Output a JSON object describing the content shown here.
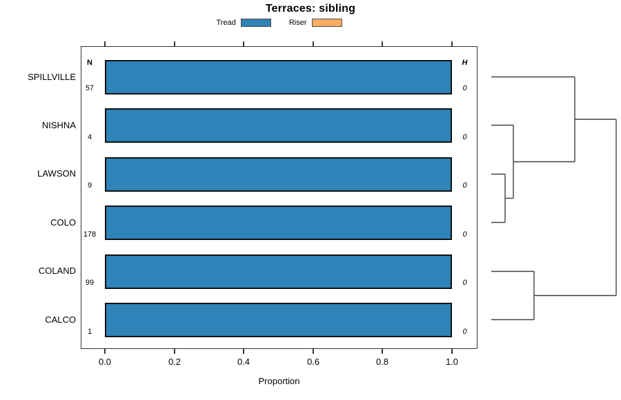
{
  "title": "Terraces: sibling",
  "legend": {
    "items": [
      {
        "label": "Tread",
        "color": "#2F83B8"
      },
      {
        "label": "Riser",
        "color": "#FCAC63"
      }
    ]
  },
  "chart_data": {
    "type": "bar",
    "orientation": "horizontal",
    "title": "Terraces: sibling",
    "categories": [
      "SPILLVILLE",
      "NISHNA",
      "LAWSON",
      "COLO",
      "COLAND",
      "CALCO"
    ],
    "series": [
      {
        "name": "Tread",
        "color": "#2F83B8",
        "values": [
          1.0,
          1.0,
          1.0,
          1.0,
          1.0,
          1.0
        ]
      },
      {
        "name": "Riser",
        "color": "#FCAC63",
        "values": [
          0,
          0,
          0,
          0,
          0,
          0
        ]
      }
    ],
    "n_column": {
      "header": "N",
      "values": [
        57,
        4,
        9,
        178,
        99,
        1
      ]
    },
    "h_column": {
      "header": "H",
      "values": [
        0,
        0,
        0,
        0,
        0,
        0
      ]
    },
    "xlabel": "Proportion",
    "x_ticks": [
      "0.0",
      "0.2",
      "0.4",
      "0.6",
      "0.8",
      "1.0"
    ],
    "xlim": [
      0,
      1
    ],
    "grid": false,
    "legend_position": "top-center",
    "bar_border_color": "#111111",
    "frame_color": "#333333"
  },
  "dendrogram": {
    "line_color": "#404040",
    "segments": [
      [
        712,
        111.5,
        833,
        111.5
      ],
      [
        833,
        111.5,
        833,
        234.5
      ],
      [
        712,
        181.5,
        744,
        181.5
      ],
      [
        744,
        181.5,
        744,
        287.5
      ],
      [
        712,
        252.5,
        732,
        252.5
      ],
      [
        712,
        322.5,
        732,
        322.5
      ],
      [
        732,
        252.5,
        732,
        322.5
      ],
      [
        732,
        287.5,
        744,
        287.5
      ],
      [
        744,
        234.5,
        833,
        234.5
      ],
      [
        833,
        173,
        893,
        173
      ],
      [
        712,
        393.5,
        774,
        393.5
      ],
      [
        712,
        463.5,
        774,
        463.5
      ],
      [
        774,
        393.5,
        774,
        463.5
      ],
      [
        774,
        428.5,
        893,
        428.5
      ],
      [
        893,
        173,
        893,
        428.5
      ]
    ]
  }
}
